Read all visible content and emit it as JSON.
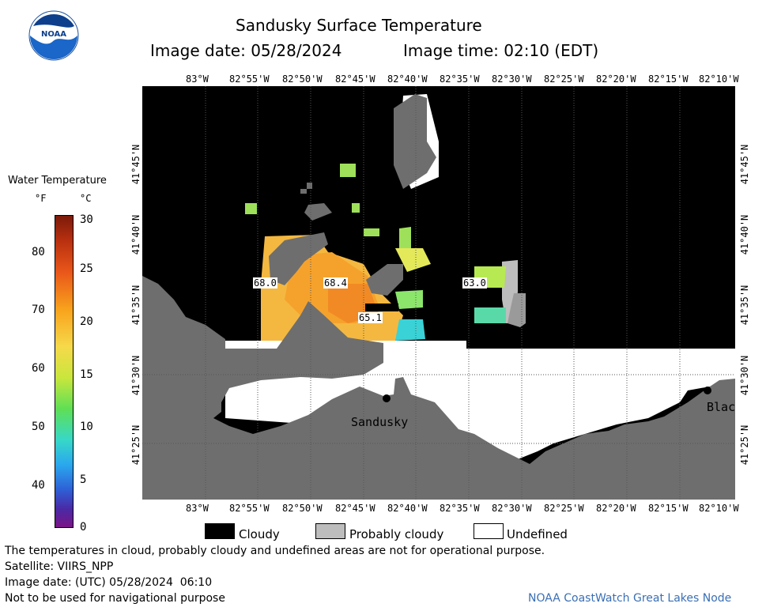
{
  "title": "Sandusky Surface Temperature",
  "image_date": "Image date: 05/28/2024",
  "image_time": "Image time: 02:10 (EDT)",
  "logo_text": "NOAA",
  "colorbar": {
    "title": "Water Temperature",
    "unit_f": "°F",
    "unit_c": "°C",
    "f_ticks": [
      "80",
      "70",
      "60",
      "50",
      "40"
    ],
    "c_ticks": [
      "30",
      "25",
      "20",
      "15",
      "10",
      "5",
      "0"
    ]
  },
  "lon_labels": [
    "83°W",
    "82°55'W",
    "82°50'W",
    "82°45'W",
    "82°40'W",
    "82°35'W",
    "82°30'W",
    "82°25'W",
    "82°20'W",
    "82°15'W",
    "82°10'W"
  ],
  "lat_labels": [
    "41°45'N",
    "41°40'N",
    "41°35'N",
    "41°30'N",
    "41°25'N"
  ],
  "map_labels": {
    "t1": "68.0",
    "t2": "68.4",
    "t3": "63.0",
    "t4": "65.1",
    "city1": "Sandusky",
    "city2": "Blac"
  },
  "legend": {
    "cloudy": "Cloudy",
    "probably_cloudy": "Probably cloudy",
    "undefined": "Undefined"
  },
  "footer": {
    "note": "The temperatures in cloud, probably cloudy and undefined areas are not for operational purpose.",
    "satellite": "Satellite: VIIRS_NPP",
    "utc_date": "Image date: (UTC) 05/28/2024  06:10",
    "nav": "Not to be used for navigational purpose",
    "credit": "NOAA CoastWatch Great Lakes Node"
  },
  "colors": {
    "cloudy": "#000000",
    "probably_cloudy": "#bdbdbd",
    "undefined": "#ffffff",
    "land": "#6e6e6e",
    "credit": "#3a6fb5"
  }
}
